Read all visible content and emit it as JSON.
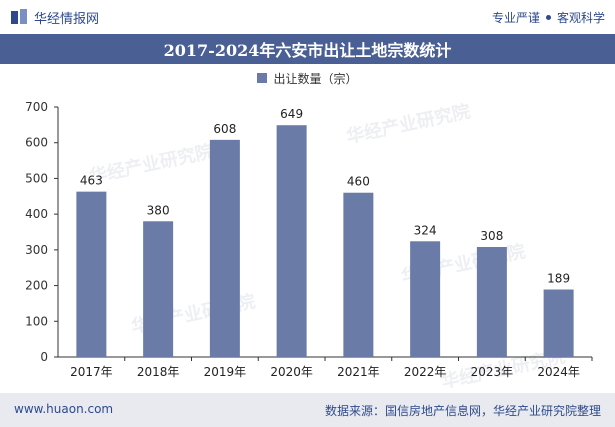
{
  "header": {
    "brand_name": "华经情报网",
    "slogan_left": "专业严谨",
    "slogan_right": "客观科学"
  },
  "title": "2017-2024年六安市出让土地宗数统计",
  "legend": {
    "label": "出让数量（宗）"
  },
  "watermark": "华经产业研究院",
  "footer": {
    "url": "www.huaon.com",
    "source": "数据来源：国信房地产信息网，华经产业研究院整理"
  },
  "colors": {
    "bar": "#6b7ba8",
    "title_bg": "#4a5f93",
    "brand": "#2e4a8c"
  },
  "chart_data": {
    "type": "bar",
    "categories": [
      "2017年",
      "2018年",
      "2019年",
      "2020年",
      "2021年",
      "2022年",
      "2023年",
      "2024年"
    ],
    "series": [
      {
        "name": "出让数量（宗）",
        "values": [
          463,
          380,
          608,
          649,
          460,
          324,
          308,
          189
        ]
      }
    ],
    "ylim": [
      0,
      700
    ],
    "yticks": [
      0,
      100,
      200,
      300,
      400,
      500,
      600,
      700
    ],
    "grid": false,
    "legend_position": "top-center"
  }
}
